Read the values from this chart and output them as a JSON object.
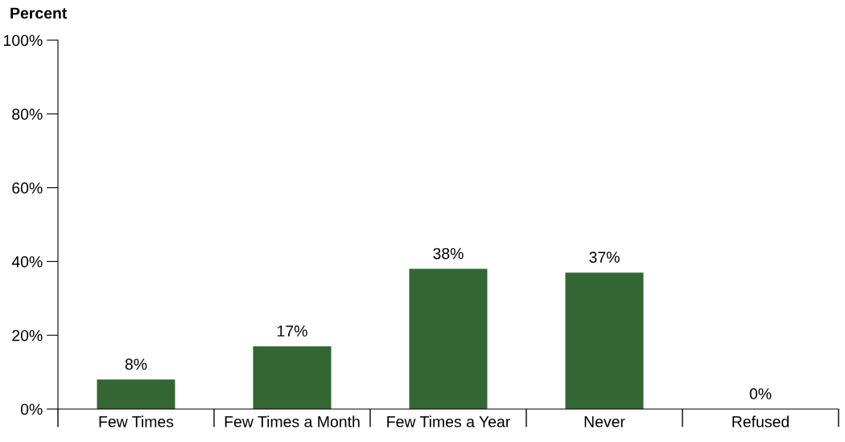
{
  "chart_data": {
    "type": "bar",
    "ylabel": "Percent",
    "categories": [
      "Few Times",
      "Few Times a Month",
      "Few Times a Year",
      "Never",
      "Refused"
    ],
    "values": [
      8,
      17,
      38,
      37,
      0
    ],
    "value_labels": [
      "8%",
      "17%",
      "38%",
      "37%",
      "0%"
    ],
    "color": "#336633",
    "ylim": [
      0,
      100
    ],
    "yticks": [
      {
        "value": 0,
        "label": "0%"
      },
      {
        "value": 20,
        "label": "20%"
      },
      {
        "value": 40,
        "label": "40%"
      },
      {
        "value": 60,
        "label": "60%"
      },
      {
        "value": 80,
        "label": "80%"
      },
      {
        "value": 100,
        "label": "100%"
      }
    ],
    "grid": false,
    "legend": false
  }
}
